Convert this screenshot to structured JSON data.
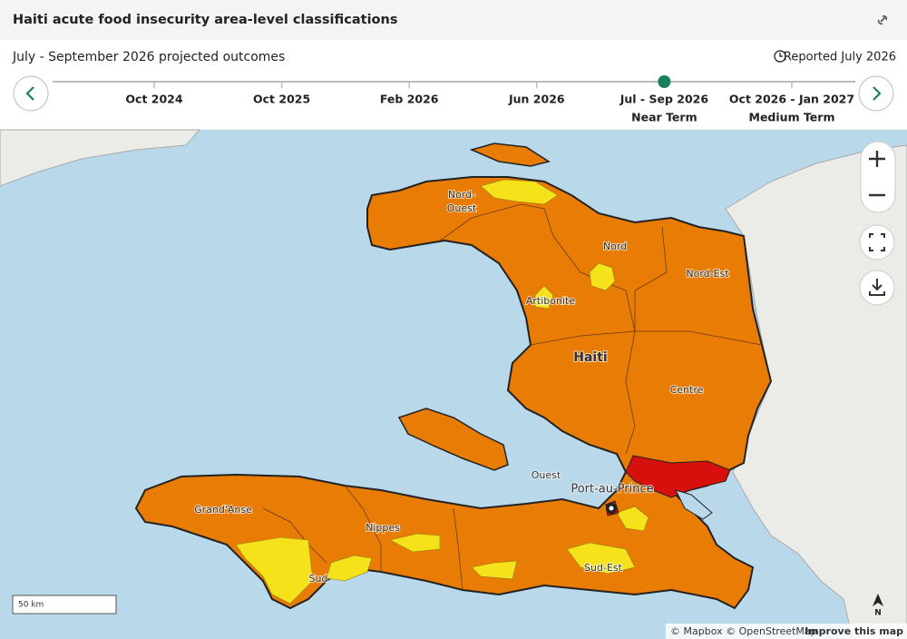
{
  "header": {
    "title": "Haiti acute food insecurity area-level classifications"
  },
  "subheader": {
    "period": "July - September 2026 projected outcomes",
    "reported": "Reported July 2026"
  },
  "timeline": {
    "items": [
      {
        "label": "Oct 2024"
      },
      {
        "label": "Oct 2025"
      },
      {
        "label": "Feb 2026"
      },
      {
        "label": "Jun 2026"
      },
      {
        "label": "Jul - Sep 2026",
        "sublabel": "Near Term"
      },
      {
        "label": "Oct 2026 - Jan 2027",
        "sublabel": "Medium Term"
      }
    ]
  },
  "map": {
    "labels": [
      "Nord-",
      "Ouest",
      "Nord",
      "Nord-Est",
      "Artibonite",
      "Haiti",
      "Centre",
      "Ouest",
      "Port-au-Prince",
      "Grand'Anse",
      "Nippes",
      "Sud",
      "Sud-Est"
    ],
    "scale": "50 km",
    "attribution": "© Mapbox © OpenStreetMap",
    "improve": "Improve this map",
    "north": "N"
  }
}
